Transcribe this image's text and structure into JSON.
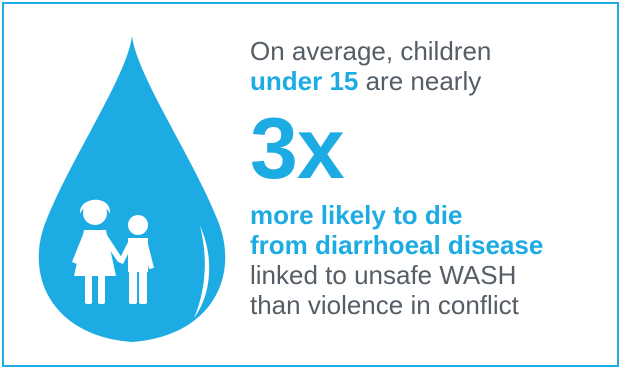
{
  "infographic": {
    "intro_line1": "On average, children",
    "intro_highlight": "under 15",
    "intro_line2_rest": " are nearly",
    "multiplier": "3x",
    "highlight_line1": "more likely to die",
    "highlight_line2": "from diarrhoeal disease",
    "detail_line1": "linked to unsafe WASH",
    "detail_line2": "than violence in conflict"
  },
  "colors": {
    "accent": "#1cabe2",
    "text": "#555e66",
    "border": "#1cabe2"
  },
  "icons": [
    "water-drop-icon",
    "children-icon"
  ]
}
